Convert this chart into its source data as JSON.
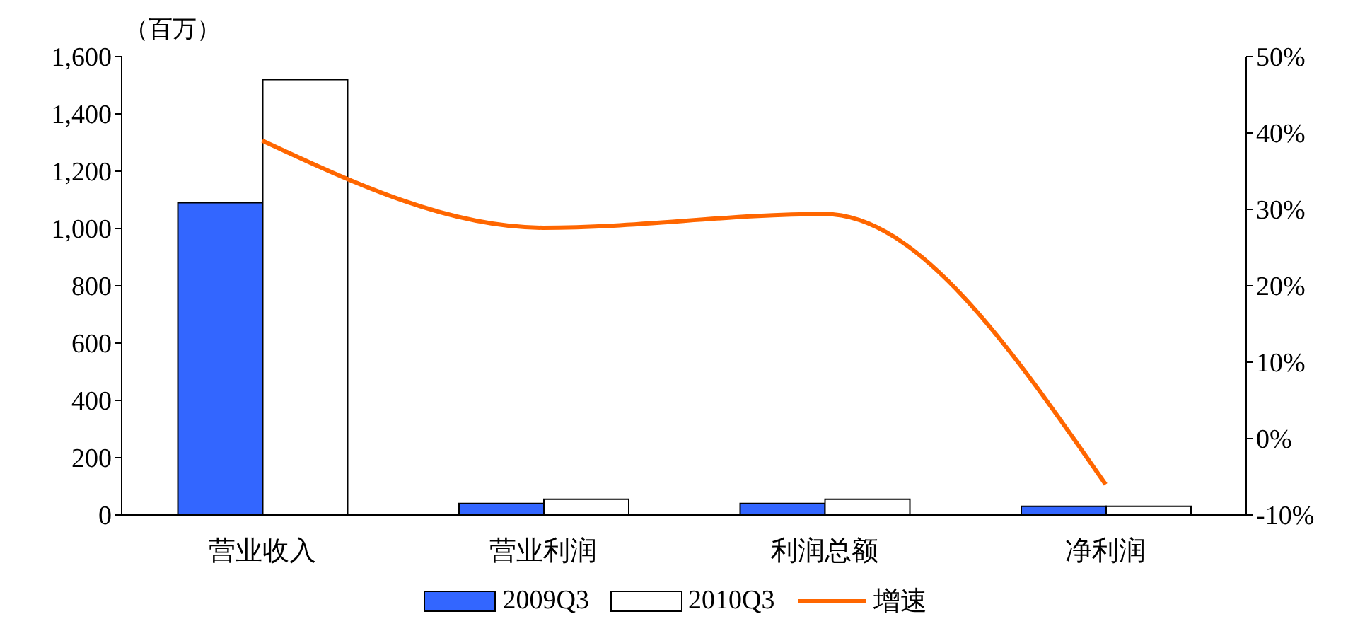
{
  "chart_data": {
    "type": "bar",
    "ylabel": "（百万）",
    "categories": [
      "营业收入",
      "营业利润",
      "利润总额",
      "净利润"
    ],
    "series": [
      {
        "name": "2009Q3",
        "color": "#3366ff",
        "values": [
          1090,
          40,
          40,
          30
        ]
      },
      {
        "name": "2010Q3",
        "color": "#ffffff",
        "values": [
          1520,
          55,
          55,
          30
        ]
      },
      {
        "name": "增速",
        "color": "#ff6600",
        "type": "line",
        "axis": "y2",
        "values": [
          39,
          27.6,
          29.4,
          -6
        ]
      }
    ],
    "ylim": [
      0,
      1600
    ],
    "yticks": [
      0,
      200,
      400,
      600,
      800,
      {
        "value": 1000,
        "label": "1,000"
      },
      {
        "value": 1200,
        "label": "1,200"
      },
      {
        "value": 1400,
        "label": "1,400"
      },
      {
        "value": 1600,
        "label": "1,600"
      }
    ],
    "y2lim": [
      -10,
      50
    ],
    "y2ticks": [
      {
        "value": -10,
        "label": "-10%"
      },
      {
        "value": 0,
        "label": "0%"
      },
      {
        "value": 10,
        "label": "10%"
      },
      {
        "value": 20,
        "label": "20%"
      },
      {
        "value": 30,
        "label": "30%"
      },
      {
        "value": 40,
        "label": "40%"
      },
      {
        "value": 50,
        "label": "50%"
      }
    ],
    "grid": false,
    "legend": "bottom",
    "marker": "none"
  }
}
